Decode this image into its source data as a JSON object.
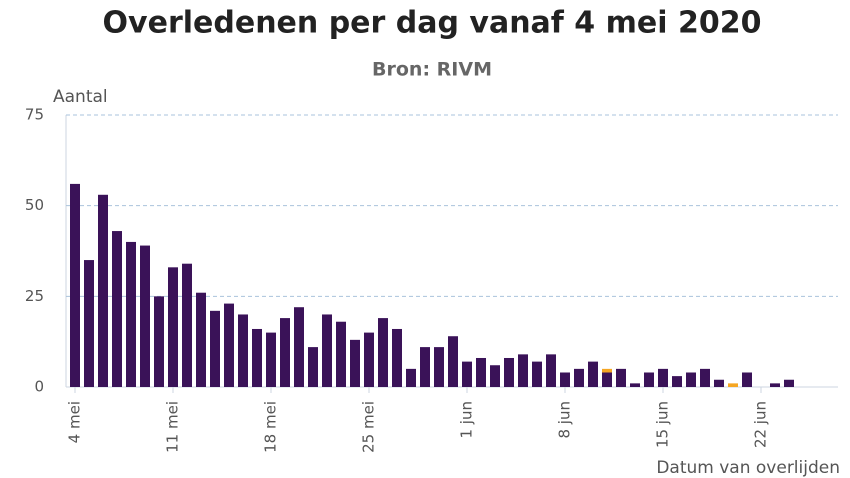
{
  "chart_data": {
    "type": "stacked-bar",
    "title": "Overledenen per dag vanaf 4 mei 2020",
    "subtitle": "Bron: RIVM",
    "y_label": "Aantal",
    "x_label": "Datum van overlijden",
    "categories": [
      "4 mei",
      null,
      null,
      null,
      null,
      null,
      null,
      "11 mei",
      null,
      null,
      null,
      null,
      null,
      null,
      "18 mei",
      null,
      null,
      null,
      null,
      null,
      null,
      "25 mei",
      null,
      null,
      null,
      null,
      null,
      null,
      "1 jun",
      null,
      null,
      null,
      null,
      null,
      null,
      "8 jun",
      null,
      null,
      null,
      null,
      null,
      null,
      "15 jun",
      null,
      null,
      null,
      null,
      null,
      null,
      "22 jun",
      null,
      null,
      null,
      null,
      null
    ],
    "series": [
      {
        "color": "#3a1258",
        "values": [
          56,
          35,
          53,
          43,
          40,
          39,
          25,
          33,
          34,
          26,
          21,
          23,
          20,
          16,
          15,
          19,
          22,
          11,
          20,
          18,
          13,
          15,
          19,
          16,
          5,
          11,
          11,
          14,
          7,
          8,
          6,
          8,
          9,
          7,
          9,
          4,
          5,
          7,
          4,
          5,
          1,
          4,
          5,
          3,
          4,
          5,
          2,
          0,
          4,
          0,
          1,
          2,
          0,
          0,
          0
        ]
      },
      {
        "color": "#f5a623",
        "values": [
          0,
          0,
          0,
          0,
          0,
          0,
          0,
          0,
          0,
          0,
          0,
          0,
          0,
          0,
          0,
          0,
          0,
          0,
          0,
          0,
          0,
          0,
          0,
          0,
          0,
          0,
          0,
          0,
          0,
          0,
          0,
          0,
          0,
          0,
          0,
          0,
          0,
          0,
          1,
          0,
          0,
          0,
          0,
          0,
          0,
          0,
          0,
          1,
          0,
          0,
          0,
          0,
          0,
          0,
          0
        ]
      }
    ],
    "ylim": [
      0,
      75
    ],
    "yticks": [
      0,
      25,
      50,
      75
    ],
    "grid": true
  }
}
